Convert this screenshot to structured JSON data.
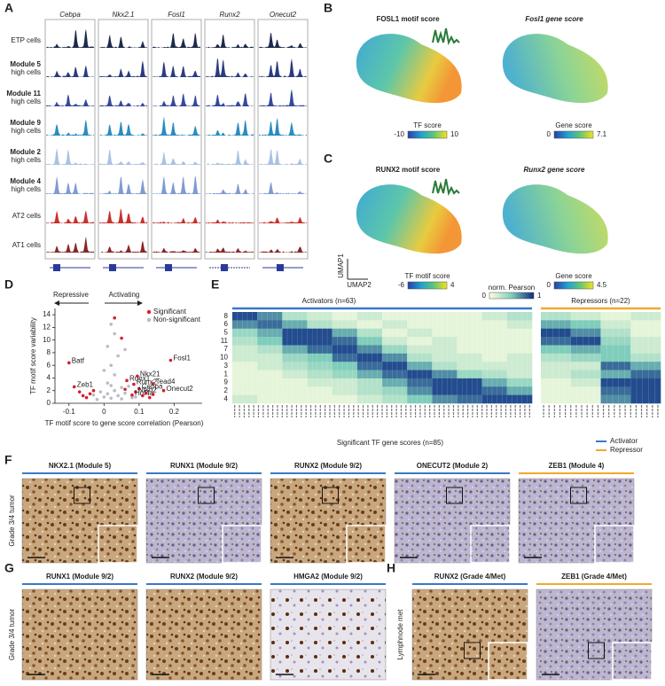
{
  "panel_labels": [
    "A",
    "B",
    "C",
    "D",
    "E",
    "F",
    "G",
    "H"
  ],
  "tracks": {
    "genes": [
      "Cebpa",
      "Nkx2.1",
      "Fosl1",
      "Runx2",
      "Onecut2"
    ],
    "rows": [
      {
        "lines": [
          "ETP cells"
        ],
        "color": "#1d2a4a"
      },
      {
        "lines": [
          "Module 5",
          "high cells"
        ],
        "color": "#2b3a80"
      },
      {
        "lines": [
          "Module 11",
          "high cells"
        ],
        "color": "#34489c"
      },
      {
        "lines": [
          "Module 9",
          "high cells"
        ],
        "color": "#2a8bc0"
      },
      {
        "lines": [
          "Module 2",
          "high cells"
        ],
        "color": "#a9c1e3"
      },
      {
        "lines": [
          "Module 4",
          "high cells"
        ],
        "color": "#7f9bd0"
      },
      {
        "lines": [
          "AT2 cells"
        ],
        "color": "#c8312c"
      },
      {
        "lines": [
          "AT1 cells"
        ],
        "color": "#872626"
      }
    ]
  },
  "umap": {
    "panels": [
      {
        "title": "FOSL1 motif score",
        "colorbar_label": "TF score",
        "ticks": [
          -10,
          10
        ]
      },
      {
        "title": "Fosl1 gene score",
        "colorbar_label": "Gene score",
        "ticks": [
          0,
          7.1
        ]
      },
      {
        "title": "RUNX2 motif score",
        "colorbar_label": "TF motif score",
        "ticks": [
          -6,
          4
        ]
      },
      {
        "title": "Runx2 gene score",
        "colorbar_label": "Gene score",
        "ticks": [
          0,
          4.5
        ]
      }
    ],
    "axis_y": "UMAP1",
    "axis_x": "UMAP2"
  },
  "chart_data": {
    "type": "scatter",
    "x_label": "TF motif score to gene score correlation (Pearson)",
    "y_label": "TF motif score variability",
    "direction_left": "Repressive",
    "direction_right": "Activating",
    "xlim": [
      -0.14,
      0.28
    ],
    "ylim": [
      0,
      15
    ],
    "xticks": [
      -0.1,
      0,
      0.1,
      0.2
    ],
    "yticks": [
      0,
      2,
      4,
      6,
      8,
      10,
      12,
      14
    ],
    "series": [
      {
        "name": "Significant",
        "color": "#d42030",
        "x": [
          -0.1,
          -0.085,
          0.19,
          0.17,
          0.095,
          0.065,
          0.085,
          0.14,
          0.1,
          0.09,
          0.08,
          0.05,
          0.03,
          -0.06,
          -0.04,
          -0.05,
          -0.07,
          0.11,
          0.12,
          0.13,
          0.06,
          -0.03,
          0.14
        ],
        "y": [
          6.4,
          2.6,
          6.8,
          2.0,
          4.3,
          3.6,
          3.0,
          3.1,
          2.3,
          1.8,
          1.3,
          10.3,
          13.5,
          1.2,
          1.5,
          0.9,
          1.8,
          1.2,
          1.6,
          0.9,
          2.2,
          2.0,
          1.4
        ],
        "labels": [
          "Batf",
          "Zeb1",
          "Fosl1",
          "Onecut2",
          "Nkx21",
          "Runx1",
          "Runx2",
          "Tead4",
          "Cebpa",
          "Nfkb2",
          "Hnf4a",
          null,
          null,
          null,
          null,
          null,
          null,
          null,
          null,
          null,
          null,
          null,
          null
        ]
      },
      {
        "name": "Non-significant",
        "color": "#b8bcc4",
        "x": [
          0,
          0.01,
          0.02,
          0.03,
          -0.01,
          0.04,
          0.05,
          -0.02,
          0.02,
          0.06,
          0.01,
          0.03,
          0.02,
          0.04,
          0.01,
          0.03,
          0.02,
          0.06,
          0,
          0.07,
          0.08,
          -0.03,
          0.05,
          0.09
        ],
        "y": [
          1,
          1.5,
          0.8,
          2,
          1.8,
          1.2,
          2.5,
          0.6,
          2.8,
          1.6,
          3.2,
          4.5,
          6,
          7.5,
          9,
          11,
          12.5,
          8.5,
          5.2,
          2.7,
          0.9,
          1.3,
          0.7,
          1.0
        ]
      }
    ]
  },
  "heatmap": {
    "activators_title": "Activators (n=63)",
    "repressors_title": "Repressors (n=22)",
    "colorbar_label": "norm. Pearson",
    "colorbar_ticks": [
      0,
      1
    ],
    "x_label": "Significant TF gene scores (n=85)",
    "legend": [
      {
        "name": "Activator",
        "color": "#3a78c9"
      },
      {
        "name": "Repressor",
        "color": "#f0a830"
      }
    ],
    "rows": [
      "8",
      "6",
      "5",
      "11",
      "7",
      "10",
      "3",
      "1",
      "9",
      "2",
      "4"
    ],
    "activator_values": [
      [
        0.9,
        0.7,
        0.3,
        0.2,
        0.1,
        0.2,
        0.1,
        0.1,
        0.1,
        0.1,
        0.2,
        0.3
      ],
      [
        0.7,
        0.8,
        0.6,
        0.3,
        0.2,
        0.1,
        0.2,
        0.1,
        0.1,
        0.1,
        0.1,
        0.2
      ],
      [
        0.4,
        0.6,
        0.9,
        0.9,
        0.6,
        0.3,
        0.1,
        0.2,
        0.1,
        0.1,
        0.1,
        0.1
      ],
      [
        0.3,
        0.5,
        0.9,
        0.9,
        0.8,
        0.5,
        0.2,
        0.1,
        0.2,
        0.1,
        0.1,
        0.1
      ],
      [
        0.2,
        0.3,
        0.6,
        0.8,
        0.9,
        0.7,
        0.4,
        0.2,
        0.2,
        0.1,
        0.1,
        0.1
      ],
      [
        0.2,
        0.2,
        0.4,
        0.5,
        0.8,
        0.9,
        0.7,
        0.3,
        0.2,
        0.2,
        0.1,
        0.2
      ],
      [
        0.1,
        0.2,
        0.3,
        0.4,
        0.5,
        0.8,
        0.9,
        0.6,
        0.3,
        0.2,
        0.2,
        0.2
      ],
      [
        0.1,
        0.1,
        0.2,
        0.3,
        0.4,
        0.6,
        0.8,
        0.9,
        0.7,
        0.4,
        0.3,
        0.2
      ],
      [
        0.1,
        0.1,
        0.1,
        0.2,
        0.2,
        0.3,
        0.6,
        0.8,
        0.9,
        0.9,
        0.6,
        0.4
      ],
      [
        0.1,
        0.1,
        0.1,
        0.1,
        0.2,
        0.3,
        0.4,
        0.7,
        0.9,
        0.9,
        0.8,
        0.6
      ],
      [
        0.2,
        0.1,
        0.1,
        0.1,
        0.1,
        0.2,
        0.3,
        0.5,
        0.7,
        0.8,
        0.9,
        0.9
      ]
    ],
    "repressor_values": [
      [
        0.3,
        0.2,
        0.1,
        0.2
      ],
      [
        0.6,
        0.5,
        0.2,
        0.1
      ],
      [
        0.9,
        0.7,
        0.3,
        0.1
      ],
      [
        0.8,
        0.9,
        0.4,
        0.2
      ],
      [
        0.5,
        0.6,
        0.5,
        0.2
      ],
      [
        0.3,
        0.4,
        0.5,
        0.3
      ],
      [
        0.2,
        0.2,
        0.8,
        0.6
      ],
      [
        0.2,
        0.3,
        0.6,
        0.8
      ],
      [
        0.1,
        0.2,
        0.9,
        0.9
      ],
      [
        0.1,
        0.1,
        0.8,
        0.9
      ],
      [
        0.1,
        0.1,
        0.7,
        0.9
      ]
    ]
  },
  "ihc": {
    "F": {
      "row_label": "Grade 3/4 tumor",
      "images": [
        {
          "title": "NKX2.1 (Module 5)",
          "group": 0
        },
        {
          "title": "RUNX1 (Module 9/2)",
          "group": 0
        },
        {
          "title": "RUNX2 (Module 9/2)",
          "group": 0
        },
        {
          "title": "ONECUT2 (Module 2)",
          "group": 0
        },
        {
          "title": "ZEB1 (Module 4)",
          "group": 1
        }
      ]
    },
    "G": {
      "row_label": "Grade 3/4 tumor",
      "images": [
        {
          "title": "RUNX1 (Module 9/2)",
          "group": 0
        },
        {
          "title": "RUNX2 (Module 9/2)",
          "group": 0
        },
        {
          "title": "HMGA2 (Module 9/2)",
          "group": 0
        }
      ]
    },
    "H": {
      "row_label": "Lymphnode met",
      "images": [
        {
          "title": "RUNX2 (Grade 4/Met)",
          "group": 0
        },
        {
          "title": "ZEB1 (Grade 4/Met)",
          "group": 1
        }
      ]
    }
  }
}
